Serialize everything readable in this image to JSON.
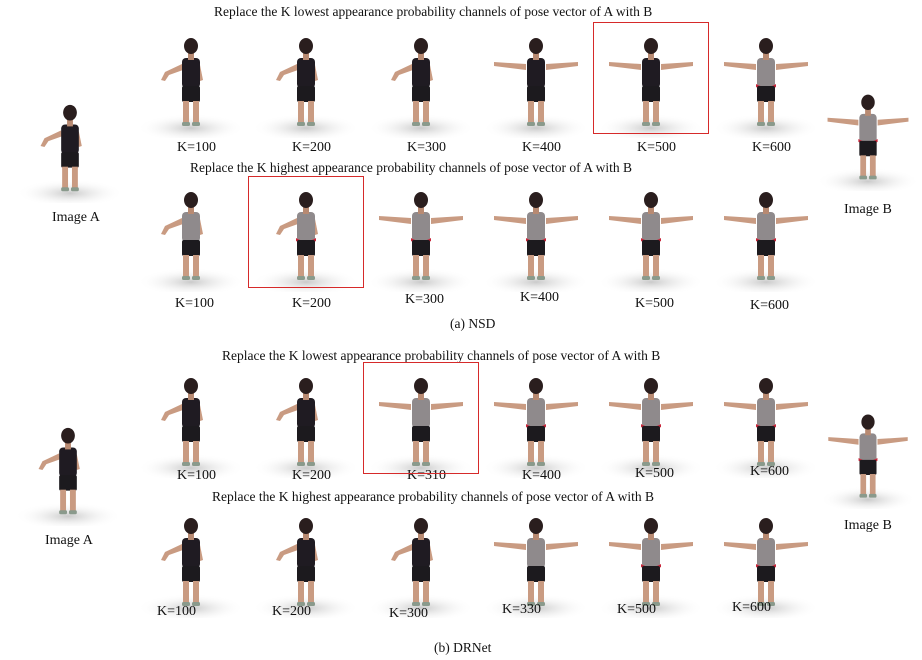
{
  "highlight_color": "#d62a2a",
  "nsd": {
    "lowest_title": "Replace the K lowest appearance probability channels of  pose vector of A with B",
    "highest_title": "Replace the K highest appearance probability channels of  pose vector of A with B",
    "lowest_labels": [
      "K=100",
      "K=200",
      "K=300",
      "K=400",
      "K=500",
      "K=600"
    ],
    "highest_labels": [
      "K=100",
      "K=200",
      "K=300",
      "K=400",
      "K=500",
      "K=600"
    ],
    "lowest_highlight_index": 4,
    "highest_highlight_index": 1,
    "image_a_label": "Image A",
    "image_b_label": "Image B",
    "caption": "(a) NSD"
  },
  "drnet": {
    "lowest_title": "Replace the K lowest appearance probability channels of  pose vector of A with B",
    "highest_title": "Replace the K highest appearance probability channels of  pose vector of A with B",
    "lowest_labels": [
      "K=100",
      "K=200",
      "K=310",
      "K=400",
      "K=500",
      "K=600"
    ],
    "highest_labels": [
      "K=100",
      "K=200",
      "K=300",
      "K=330",
      "K=500",
      "K=600"
    ],
    "lowest_highlight_index": 2,
    "image_a_label": "Image A",
    "image_b_label": "Image B",
    "caption": "(b) DRNet"
  }
}
